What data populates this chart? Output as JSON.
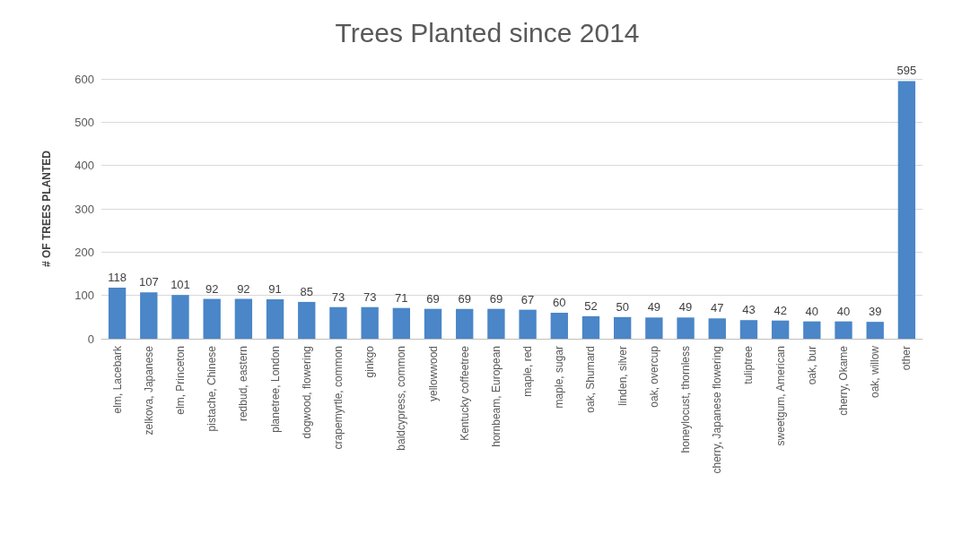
{
  "chart_data": {
    "type": "bar",
    "title": "Trees Planted since 2014",
    "ylabel": "# OF TREES PLANTED",
    "categories": [
      "elm, Lacebark",
      "zelkova, Japanese",
      "elm, Princeton",
      "pistache, Chinese",
      "redbud, eastern",
      "planetree, London",
      "dogwood, flowering",
      "crapemyrtle, common",
      "ginkgo",
      "baldcypress, common",
      "yellowwood",
      "Kentucky coffeetree",
      "hornbeam, European",
      "maple, red",
      "maple, sugar",
      "oak, Shumard",
      "linden, silver",
      "oak, overcup",
      "honeylocust, thornless",
      "cherry, Japanese flowering",
      "tuliptree",
      "sweetgum, American",
      "oak, bur",
      "cherry, Okame",
      "oak, willow",
      "other"
    ],
    "values": [
      118,
      107,
      101,
      92,
      92,
      91,
      85,
      73,
      73,
      71,
      69,
      69,
      69,
      67,
      60,
      52,
      50,
      49,
      49,
      47,
      43,
      42,
      40,
      40,
      39,
      595
    ],
    "color": "#4a86c8",
    "ylim": [
      0,
      600
    ],
    "yticks": [
      0,
      100,
      200,
      300,
      400,
      500,
      600
    ],
    "grid": "y",
    "data_labels": true
  }
}
